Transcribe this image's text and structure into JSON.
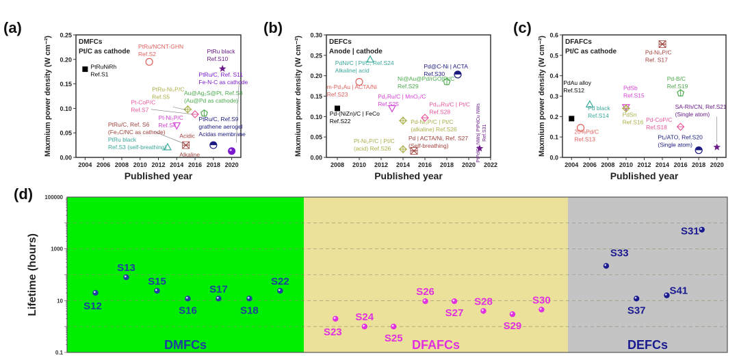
{
  "chart_data": [
    {
      "id": "a",
      "type": "scatter",
      "panel_label": "(a)",
      "title_lines": [
        "DMFCs",
        "Pt/C as cathode"
      ],
      "xlabel": "Published year",
      "ylabel": "Maxmium power density (W cm⁻²)",
      "xlim": [
        2003,
        2021
      ],
      "ylim": [
        0,
        0.25
      ],
      "xticks": [
        2004,
        2006,
        2008,
        2010,
        2012,
        2014,
        2016,
        2018,
        2020
      ],
      "yticks": [
        "0.00",
        "0.05",
        "0.10",
        "0.15",
        "0.20",
        "0.25"
      ],
      "points": [
        {
          "x": 2004,
          "y": 0.18,
          "marker": "square-filled",
          "color": "#000000",
          "labels": [
            "PtRuNiRh",
            "Ref.S1"
          ],
          "lx": 2004.6,
          "ly": 0.181
        },
        {
          "x": 2011,
          "y": 0.195,
          "marker": "circle-open",
          "color": "#e0605c",
          "labels": [
            "PtRu/NCNT-GHN",
            "Ref.S2"
          ],
          "lx": 2009.8,
          "ly": 0.222
        },
        {
          "x": 2013,
          "y": 0.021,
          "marker": "triangle-open",
          "color": "#3aa89a",
          "labels": [
            "PtRu black",
            "Ref.S3 (self-breathing)"
          ],
          "lx": 2006.5,
          "ly": 0.032
        },
        {
          "x": 2014,
          "y": 0.065,
          "marker": "triangle-down-open",
          "color": "#d43fd4",
          "labels": [
            "Pt-Ni₂P/C",
            "Ref.S4"
          ],
          "lx": 2012,
          "ly": 0.077
        },
        {
          "x": 2015.2,
          "y": 0.098,
          "marker": "plus-diamond",
          "color": "#a9b04a",
          "labels": [
            "PtRu-Ni₂P/C",
            "Ref.S5"
          ],
          "lx": 2011.3,
          "ly": 0.135
        },
        {
          "x": 2015,
          "y": 0.025,
          "marker": "cross-stack",
          "color": "#a0403c",
          "labels": [
            "PtRu/C, Ref. S6",
            "(Fe₃C/NC as cathode)"
          ],
          "lx": 2006.5,
          "ly": 0.063
        },
        {
          "x": 2016,
          "y": 0.088,
          "marker": "diamond-open",
          "color": "#e8559a",
          "labels": [
            "Pt-CoP/C",
            "Ref.S7"
          ],
          "lx": 2009,
          "ly": 0.108
        },
        {
          "x": 2017,
          "y": 0.09,
          "marker": "pentagon-open",
          "color": "#4caa4c",
          "labels": [
            "Au@Ag₂S@Pt, Ref.S8",
            "(Au@Pd as cathode)"
          ],
          "lx": 2014.8,
          "ly": 0.127
        },
        {
          "x": 2018,
          "y": 0.025,
          "marker": "half-circle",
          "color": "#1a1a80",
          "labels": [
            "PtRu/C, Ref.S9",
            "grathene aerogel",
            "Acidas membrane"
          ],
          "lx": 2016.4,
          "ly": 0.074
        },
        {
          "x": 2019,
          "y": 0.181,
          "marker": "star",
          "color": "#6a1a8a",
          "labels": [
            "PtRu black",
            "Ref.S10"
          ],
          "lx": 2017.3,
          "ly": 0.212
        },
        {
          "x": 2020,
          "y": 0.013,
          "marker": "sphere",
          "color": "#7a1acc",
          "labels": [
            "PtRu/C, Ref. S11",
            "Fe-N-C as cathode"
          ],
          "lx": 2016.4,
          "ly": 0.165
        }
      ],
      "extra_labels": [
        "Acidic",
        "Alkaline"
      ]
    },
    {
      "id": "b",
      "type": "scatter",
      "panel_label": "(b)",
      "title_lines": [
        "DEFCs",
        "Anode | cathode"
      ],
      "xlabel": "Published year",
      "ylabel": "Maxmium power density (W cm⁻²)",
      "xlim": [
        2007,
        2022
      ],
      "ylim": [
        0,
        0.3
      ],
      "xticks": [
        2008,
        2010,
        2012,
        2014,
        2016,
        2018,
        2020,
        2022
      ],
      "yticks": [
        "0.00",
        "0.05",
        "0.10",
        "0.15",
        "0.20",
        "0.25",
        "0.30"
      ],
      "points": [
        {
          "x": 2008,
          "y": 0.12,
          "marker": "square-filled",
          "color": "#000000",
          "labels": [
            "Pd-(NiZn)/C | FeCo",
            "Ref.S22"
          ],
          "lx": 2007.3,
          "ly": 0.102
        },
        {
          "x": 2010,
          "y": 0.185,
          "marker": "circle-open",
          "color": "#e0605c",
          "labels": [
            "m-Pd₃Au | ACTA/Ni",
            "Ref.S23"
          ],
          "lx": 2007.05,
          "ly": 0.168
        },
        {
          "x": 2011,
          "y": 0.24,
          "marker": "triangle-open",
          "color": "#3aa89a",
          "labels": [
            "PdNi/C | Pt/C, Ref.S24",
            "Alkaline| acid"
          ],
          "lx": 2007.8,
          "ly": 0.226
        },
        {
          "x": 2013,
          "y": 0.12,
          "marker": "triangle-down-open",
          "color": "#d43fd4",
          "labels": [
            "Pd₂Ru/C | MnO₂/C",
            "Ref.S25"
          ],
          "lx": 2011.7,
          "ly": 0.144
        },
        {
          "x": 2014,
          "y": 0.09,
          "marker": "plus-diamond",
          "color": "#a9b04a",
          "labels": [
            "Pd-Ni₂P/C | Pt/C",
            "(alkaline) Ref.S26"
          ],
          "lx": 2014.7,
          "ly": 0.082
        },
        {
          "x": 2014,
          "y": 0.02,
          "marker": "plus-diamond",
          "color": "#a9b04a",
          "labels": [
            "Pt-Ni₂P/C | Pt/C",
            "(acid) Ref.S26"
          ],
          "lx": 2009.5,
          "ly": 0.035
        },
        {
          "x": 2015,
          "y": 0.016,
          "marker": "cross-stack",
          "color": "#a0403c",
          "labels": [
            "Pd | ACTA/Ni, Ref. S27",
            "(Self-breathing)"
          ],
          "lx": 2014.5,
          "ly": 0.042
        },
        {
          "x": 2016,
          "y": 0.097,
          "marker": "diamond-open",
          "color": "#e8559a",
          "labels": [
            "Pd₁₀Ru/C | Pt/C",
            "Ref.S28"
          ],
          "lx": 2016.4,
          "ly": 0.125
        },
        {
          "x": 2018,
          "y": 0.185,
          "marker": "pentagon-open",
          "color": "#4caa4c",
          "labels": [
            "Ni@Au@Pd/rGO|Pt/C",
            "Ref.S29"
          ],
          "lx": 2013.5,
          "ly": 0.188
        },
        {
          "x": 2019,
          "y": 0.203,
          "marker": "half-circle",
          "color": "#1a1a80",
          "labels": [
            "Pd@C-Ni | ACTA",
            "Ref.S30"
          ],
          "lx": 2015.9,
          "ly": 0.218
        },
        {
          "x": 2021,
          "y": 0.022,
          "marker": "star",
          "color": "#6a1a8a",
          "labels": [
            "PtPdCu NWs| PtPdCu NWs",
            "Ref.S31"
          ],
          "lx": 2021,
          "ly": 0.06,
          "rotate": true
        }
      ]
    },
    {
      "id": "c",
      "type": "scatter",
      "panel_label": "(c)",
      "title_lines": [
        "DFAFCs",
        "Pt/C as cathode"
      ],
      "xlabel": "Published year",
      "ylabel": "Maxmium power density (W cm⁻²)",
      "xlim": [
        2003,
        2021
      ],
      "ylim": [
        0,
        0.6
      ],
      "xticks": [
        2004,
        2006,
        2008,
        2010,
        2012,
        2014,
        2016,
        2018,
        2020
      ],
      "yticks": [
        "0.0",
        "0.1",
        "0.2",
        "0.3",
        "0.4",
        "0.5",
        "0.6"
      ],
      "points": [
        {
          "x": 2004,
          "y": 0.19,
          "marker": "square-filled",
          "color": "#000000",
          "labels": [
            "PdAu alloy",
            "Ref.S12"
          ],
          "lx": 2003.1,
          "ly": 0.355
        },
        {
          "x": 2005,
          "y": 0.145,
          "marker": "circle-open",
          "color": "#e0605c",
          "labels": [
            "20%Pd/C",
            "Ref.S13"
          ],
          "lx": 2004.3,
          "ly": 0.115
        },
        {
          "x": 2006,
          "y": 0.26,
          "marker": "triangle-open",
          "color": "#3aa89a",
          "labels": [
            "Pd black",
            "Ref.S14"
          ],
          "lx": 2005.8,
          "ly": 0.232
        },
        {
          "x": 2010,
          "y": 0.245,
          "marker": "triangle-down-open",
          "color": "#d43fd4",
          "labels": [
            "PdSb",
            "Ref.S15"
          ],
          "lx": 2009.7,
          "ly": 0.33
        },
        {
          "x": 2010,
          "y": 0.24,
          "marker": "plus-diamond",
          "color": "#a9b04a",
          "labels": [
            "PdSn",
            "Ref.S16"
          ],
          "lx": 2009.6,
          "ly": 0.2
        },
        {
          "x": 2014,
          "y": 0.555,
          "marker": "cross-stack",
          "color": "#a0403c",
          "labels": [
            "Pd-Ni₂P/C",
            "Ref. S17"
          ],
          "lx": 2012.1,
          "ly": 0.505
        },
        {
          "x": 2016,
          "y": 0.15,
          "marker": "diamond-open",
          "color": "#e8559a",
          "labels": [
            "Pd-CoP/C",
            "Ref.S18"
          ],
          "lx": 2012.2,
          "ly": 0.175
        },
        {
          "x": 2016,
          "y": 0.315,
          "marker": "pentagon-open",
          "color": "#4caa4c",
          "labels": [
            "Pd-B/C",
            "Ref.S19"
          ],
          "lx": 2014.5,
          "ly": 0.375
        },
        {
          "x": 2018,
          "y": 0.035,
          "marker": "half-circle",
          "color": "#1a1a80",
          "labels": [
            "Pt₁/ATO, Ref.S20",
            "(Single atom)"
          ],
          "lx": 2013.5,
          "ly": 0.088
        },
        {
          "x": 2020,
          "y": 0.05,
          "marker": "star",
          "color": "#6a1a8a",
          "labels": [
            "SA-Rh/CN, Ref.S21",
            "(Single atom)"
          ],
          "lx": 2015.4,
          "ly": 0.238
        }
      ]
    },
    {
      "id": "d",
      "type": "scatter",
      "panel_label": "(d)",
      "ylabel": "Lifetime (hours)",
      "yscale": "log",
      "ylim": [
        0.1,
        100000
      ],
      "yticks": [
        "0.1",
        "10",
        "1000",
        "100000"
      ],
      "groups": [
        {
          "name": "DMFCs",
          "bg": "#00ee00",
          "text_color": "#1f3f9f"
        },
        {
          "name": "DFAFCs",
          "bg": "#ece19a",
          "text_color": "#e030e0"
        },
        {
          "name": "DEFCs",
          "bg": "#c4c4c4",
          "text_color": "#1a1a90"
        }
      ],
      "points": [
        {
          "label": "S12",
          "group": 0,
          "pos": 0.12,
          "y": 20,
          "label_pos": "below-left"
        },
        {
          "label": "S13",
          "group": 0,
          "pos": 0.25,
          "y": 80,
          "label_pos": "above"
        },
        {
          "label": "S15",
          "group": 0,
          "pos": 0.38,
          "y": 24,
          "label_pos": "above"
        },
        {
          "label": "S16",
          "group": 0,
          "pos": 0.51,
          "y": 12,
          "label_pos": "below"
        },
        {
          "label": "S17",
          "group": 0,
          "pos": 0.64,
          "y": 12,
          "label_pos": "above"
        },
        {
          "label": "S18",
          "group": 0,
          "pos": 0.77,
          "y": 12,
          "label_pos": "below"
        },
        {
          "label": "S22",
          "group": 0,
          "pos": 0.9,
          "y": 24,
          "label_pos": "above"
        },
        {
          "label": "S23",
          "group": 1,
          "pos": 0.12,
          "y": 2.0,
          "label_pos": "below-left"
        },
        {
          "label": "S24",
          "group": 1,
          "pos": 0.23,
          "y": 1.0,
          "label_pos": "above"
        },
        {
          "label": "S25",
          "group": 1,
          "pos": 0.34,
          "y": 1.0,
          "label_pos": "below"
        },
        {
          "label": "S26",
          "group": 1,
          "pos": 0.46,
          "y": 9.5,
          "label_pos": "above"
        },
        {
          "label": "S27",
          "group": 1,
          "pos": 0.57,
          "y": 9.5,
          "label_pos": "below"
        },
        {
          "label": "S28",
          "group": 1,
          "pos": 0.68,
          "y": 4.0,
          "label_pos": "above"
        },
        {
          "label": "S29",
          "group": 1,
          "pos": 0.79,
          "y": 3.0,
          "label_pos": "below"
        },
        {
          "label": "S30",
          "group": 1,
          "pos": 0.9,
          "y": 4.5,
          "label_pos": "above"
        },
        {
          "label": "S31",
          "group": 2,
          "pos": 0.84,
          "y": 5500,
          "label_pos": "left"
        },
        {
          "label": "S33",
          "group": 2,
          "pos": 0.24,
          "y": 220,
          "label_pos": "above-right"
        },
        {
          "label": "S37",
          "group": 2,
          "pos": 0.43,
          "y": 12,
          "label_pos": "below"
        },
        {
          "label": "S41",
          "group": 2,
          "pos": 0.62,
          "y": 16,
          "label_pos": "right"
        }
      ]
    }
  ]
}
